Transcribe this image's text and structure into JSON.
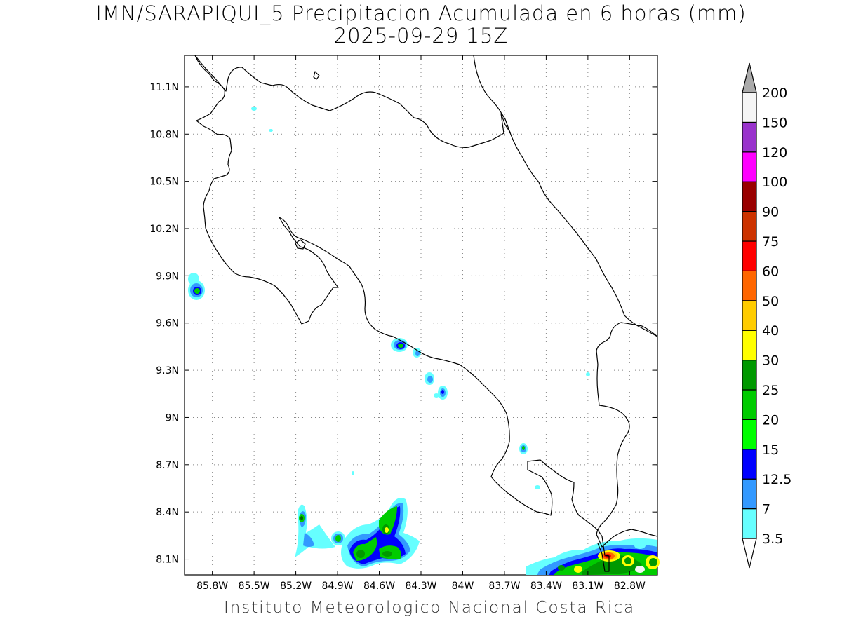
{
  "title": "IMN/SARAPIQUI_5 Precipitacion Acumulada en 6 horas (mm)",
  "subtitle": "2025-09-29 15Z",
  "footer": "Instituto Meteorologico Nacional Costa Rica",
  "map": {
    "lon_range": [
      -86.0,
      -82.6
    ],
    "lat_range": [
      8.0,
      11.3
    ],
    "x_ticks": [
      "85.8W",
      "85.5W",
      "85.2W",
      "84.9W",
      "84.6W",
      "84.3W",
      "84W",
      "83.7W",
      "83.4W",
      "83.1W",
      "82.8W"
    ],
    "x_tick_values": [
      -85.8,
      -85.5,
      -85.2,
      -84.9,
      -84.6,
      -84.3,
      -84.0,
      -83.7,
      -83.4,
      -83.1,
      -82.8
    ],
    "y_ticks": [
      "11.1N",
      "10.8N",
      "10.5N",
      "10.2N",
      "9.9N",
      "9.6N",
      "9.3N",
      "9N",
      "8.7N",
      "8.4N",
      "8.1N"
    ],
    "y_tick_values": [
      11.1,
      10.8,
      10.5,
      10.2,
      9.9,
      9.6,
      9.3,
      9.0,
      8.7,
      8.4,
      8.1
    ]
  },
  "colorbar": {
    "labels": [
      "3.5",
      "7",
      "12.5",
      "15",
      "20",
      "25",
      "30",
      "40",
      "50",
      "60",
      "75",
      "90",
      "100",
      "120",
      "150",
      "200"
    ],
    "colors": [
      "#66ffff",
      "#3399ff",
      "#0000ff",
      "#00ff00",
      "#00cc00",
      "#009900",
      "#ffff00",
      "#ffcc00",
      "#ff6600",
      "#ff0000",
      "#cc3300",
      "#990000",
      "#ff00ff",
      "#9933cc",
      "#f5f5f5",
      "#aaaaaa"
    ]
  }
}
